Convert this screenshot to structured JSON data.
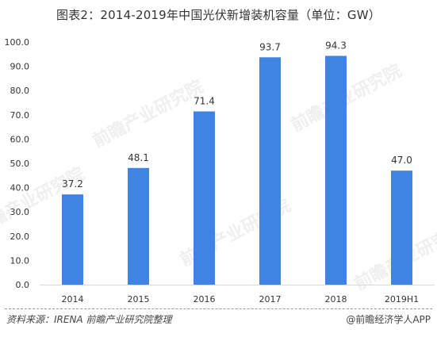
{
  "title": "图表2：2014-2019年中国光伏新增装机容量（单位：GW）",
  "watermark": "前瞻产业研究院",
  "source": "资料来源：IRENA 前瞻产业研究院整理",
  "credit": "@前瞻经济学人APP",
  "colors": {
    "bar": "#3f83e3",
    "axis": "#d9d9d9",
    "text": "#333333",
    "watermark": "#b9b9b9"
  },
  "chart_data": {
    "type": "bar",
    "categories": [
      "2014",
      "2015",
      "2016",
      "2017",
      "2018",
      "2019H1"
    ],
    "values": [
      37.2,
      48.1,
      71.4,
      93.7,
      94.3,
      47.0
    ],
    "data_labels": [
      "37.2",
      "48.1",
      "71.4",
      "93.7",
      "94.3",
      "47.0"
    ],
    "ylim": [
      0,
      100
    ],
    "yticks": [
      "0.0",
      "10.0",
      "20.0",
      "30.0",
      "40.0",
      "50.0",
      "60.0",
      "70.0",
      "80.0",
      "90.0",
      "100.0"
    ],
    "grid": false,
    "legend": "none"
  }
}
